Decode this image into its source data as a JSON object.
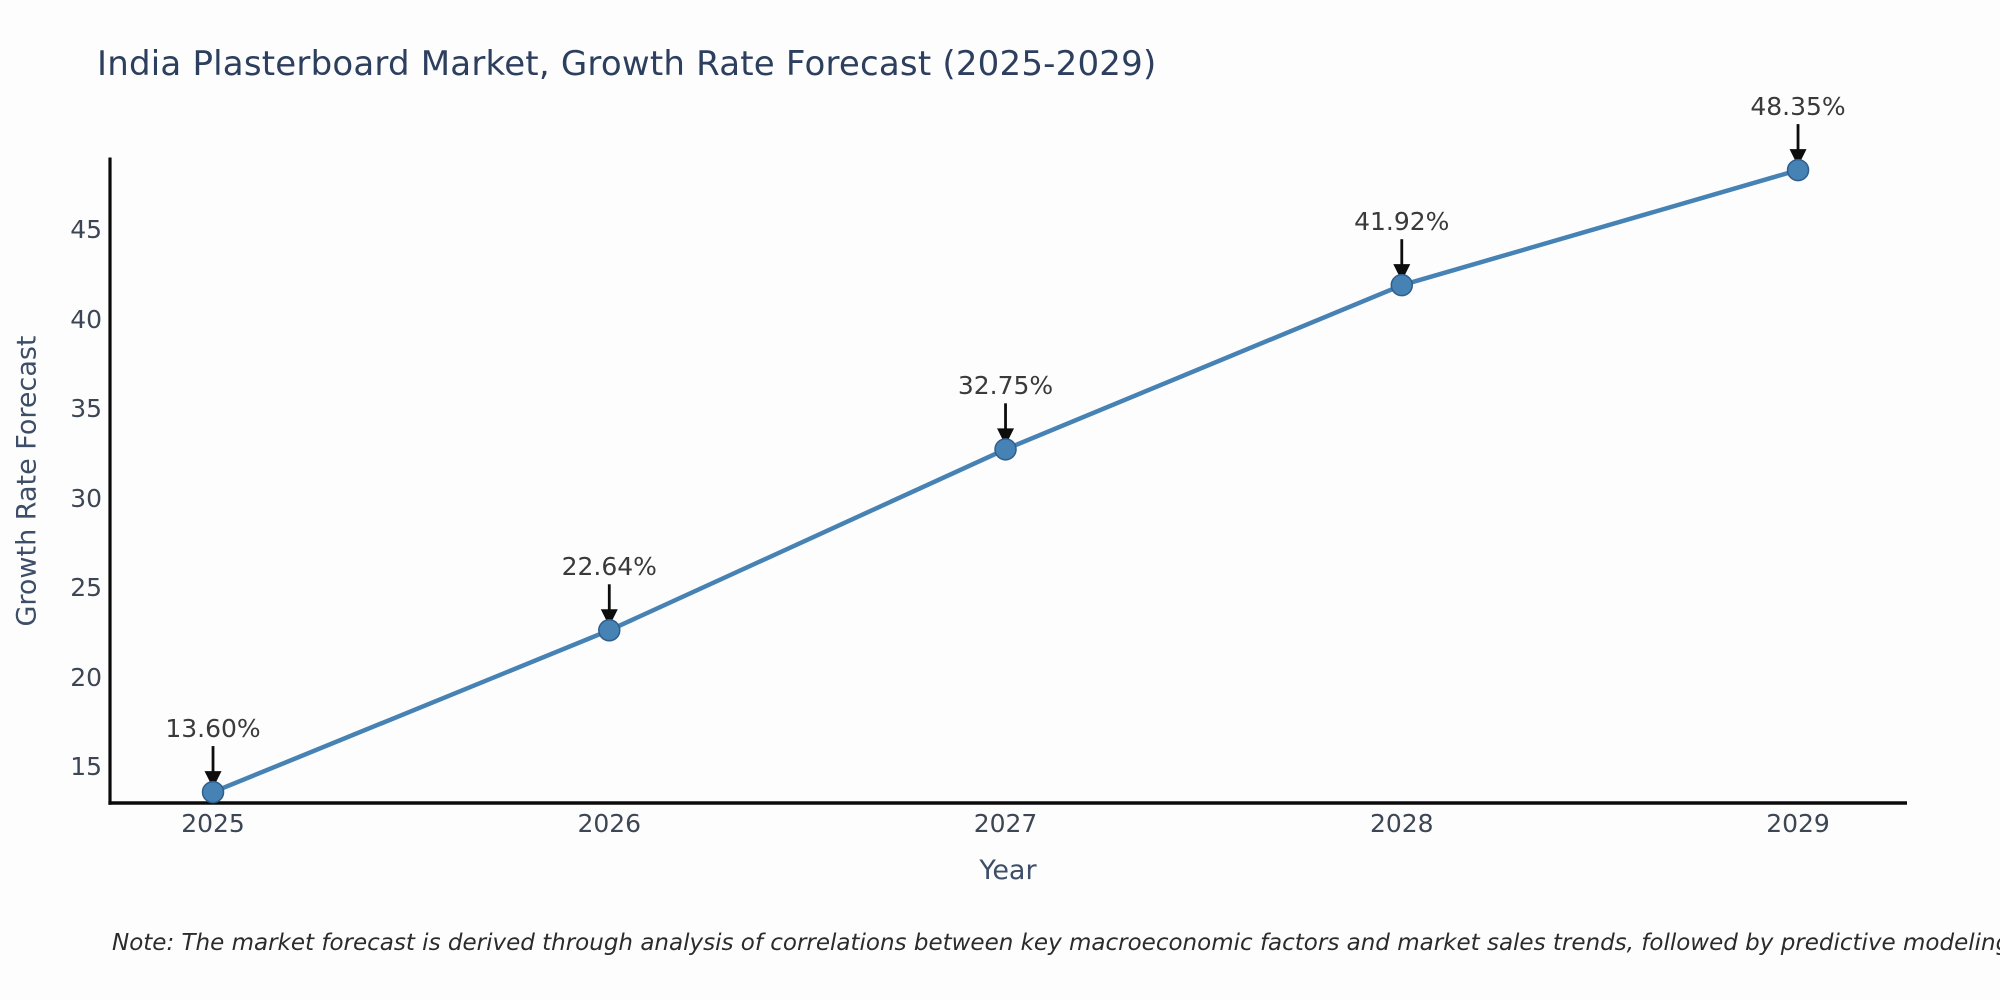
{
  "title": "India Plasterboard Market, Growth Rate Forecast (2025-2029)",
  "note": "Note: The market forecast is derived through analysis of correlations between key macroeconomic factors and market sales trends, followed by predictive modeling to project future sales",
  "chart_data": {
    "type": "line",
    "title": "India Plasterboard Market, Growth Rate Forecast (2025-2029)",
    "xlabel": "Year",
    "ylabel": "Growth Rate Forecast",
    "x": [
      2025,
      2026,
      2027,
      2028,
      2029
    ],
    "values": [
      13.6,
      22.64,
      32.75,
      41.92,
      48.35
    ],
    "point_labels": [
      "13.60%",
      "22.64%",
      "32.75%",
      "41.92%",
      "48.35%"
    ],
    "x_ticks": [
      "2025",
      "2026",
      "2027",
      "2028",
      "2029"
    ],
    "y_ticks": [
      15,
      20,
      25,
      30,
      35,
      40,
      45
    ],
    "xlim": [
      2024.74,
      2029.275
    ],
    "ylim": [
      12.99,
      48.97
    ],
    "grid": false,
    "legend": "none",
    "annotation_style": "value-above-with-down-arrow",
    "colors": {
      "line": "#4682b4",
      "marker_fill": "#4682b4",
      "marker_edge": "#2e5e8e",
      "arrow": "#0d0d0d",
      "axis_spine": "#0b0b0b",
      "title_text": "#2d3f5e",
      "axis_label_text": "#3d4e68",
      "tick_text": "#3d4654",
      "annotation_text": "#3a3a3a",
      "background": "#fdfdfd"
    }
  }
}
